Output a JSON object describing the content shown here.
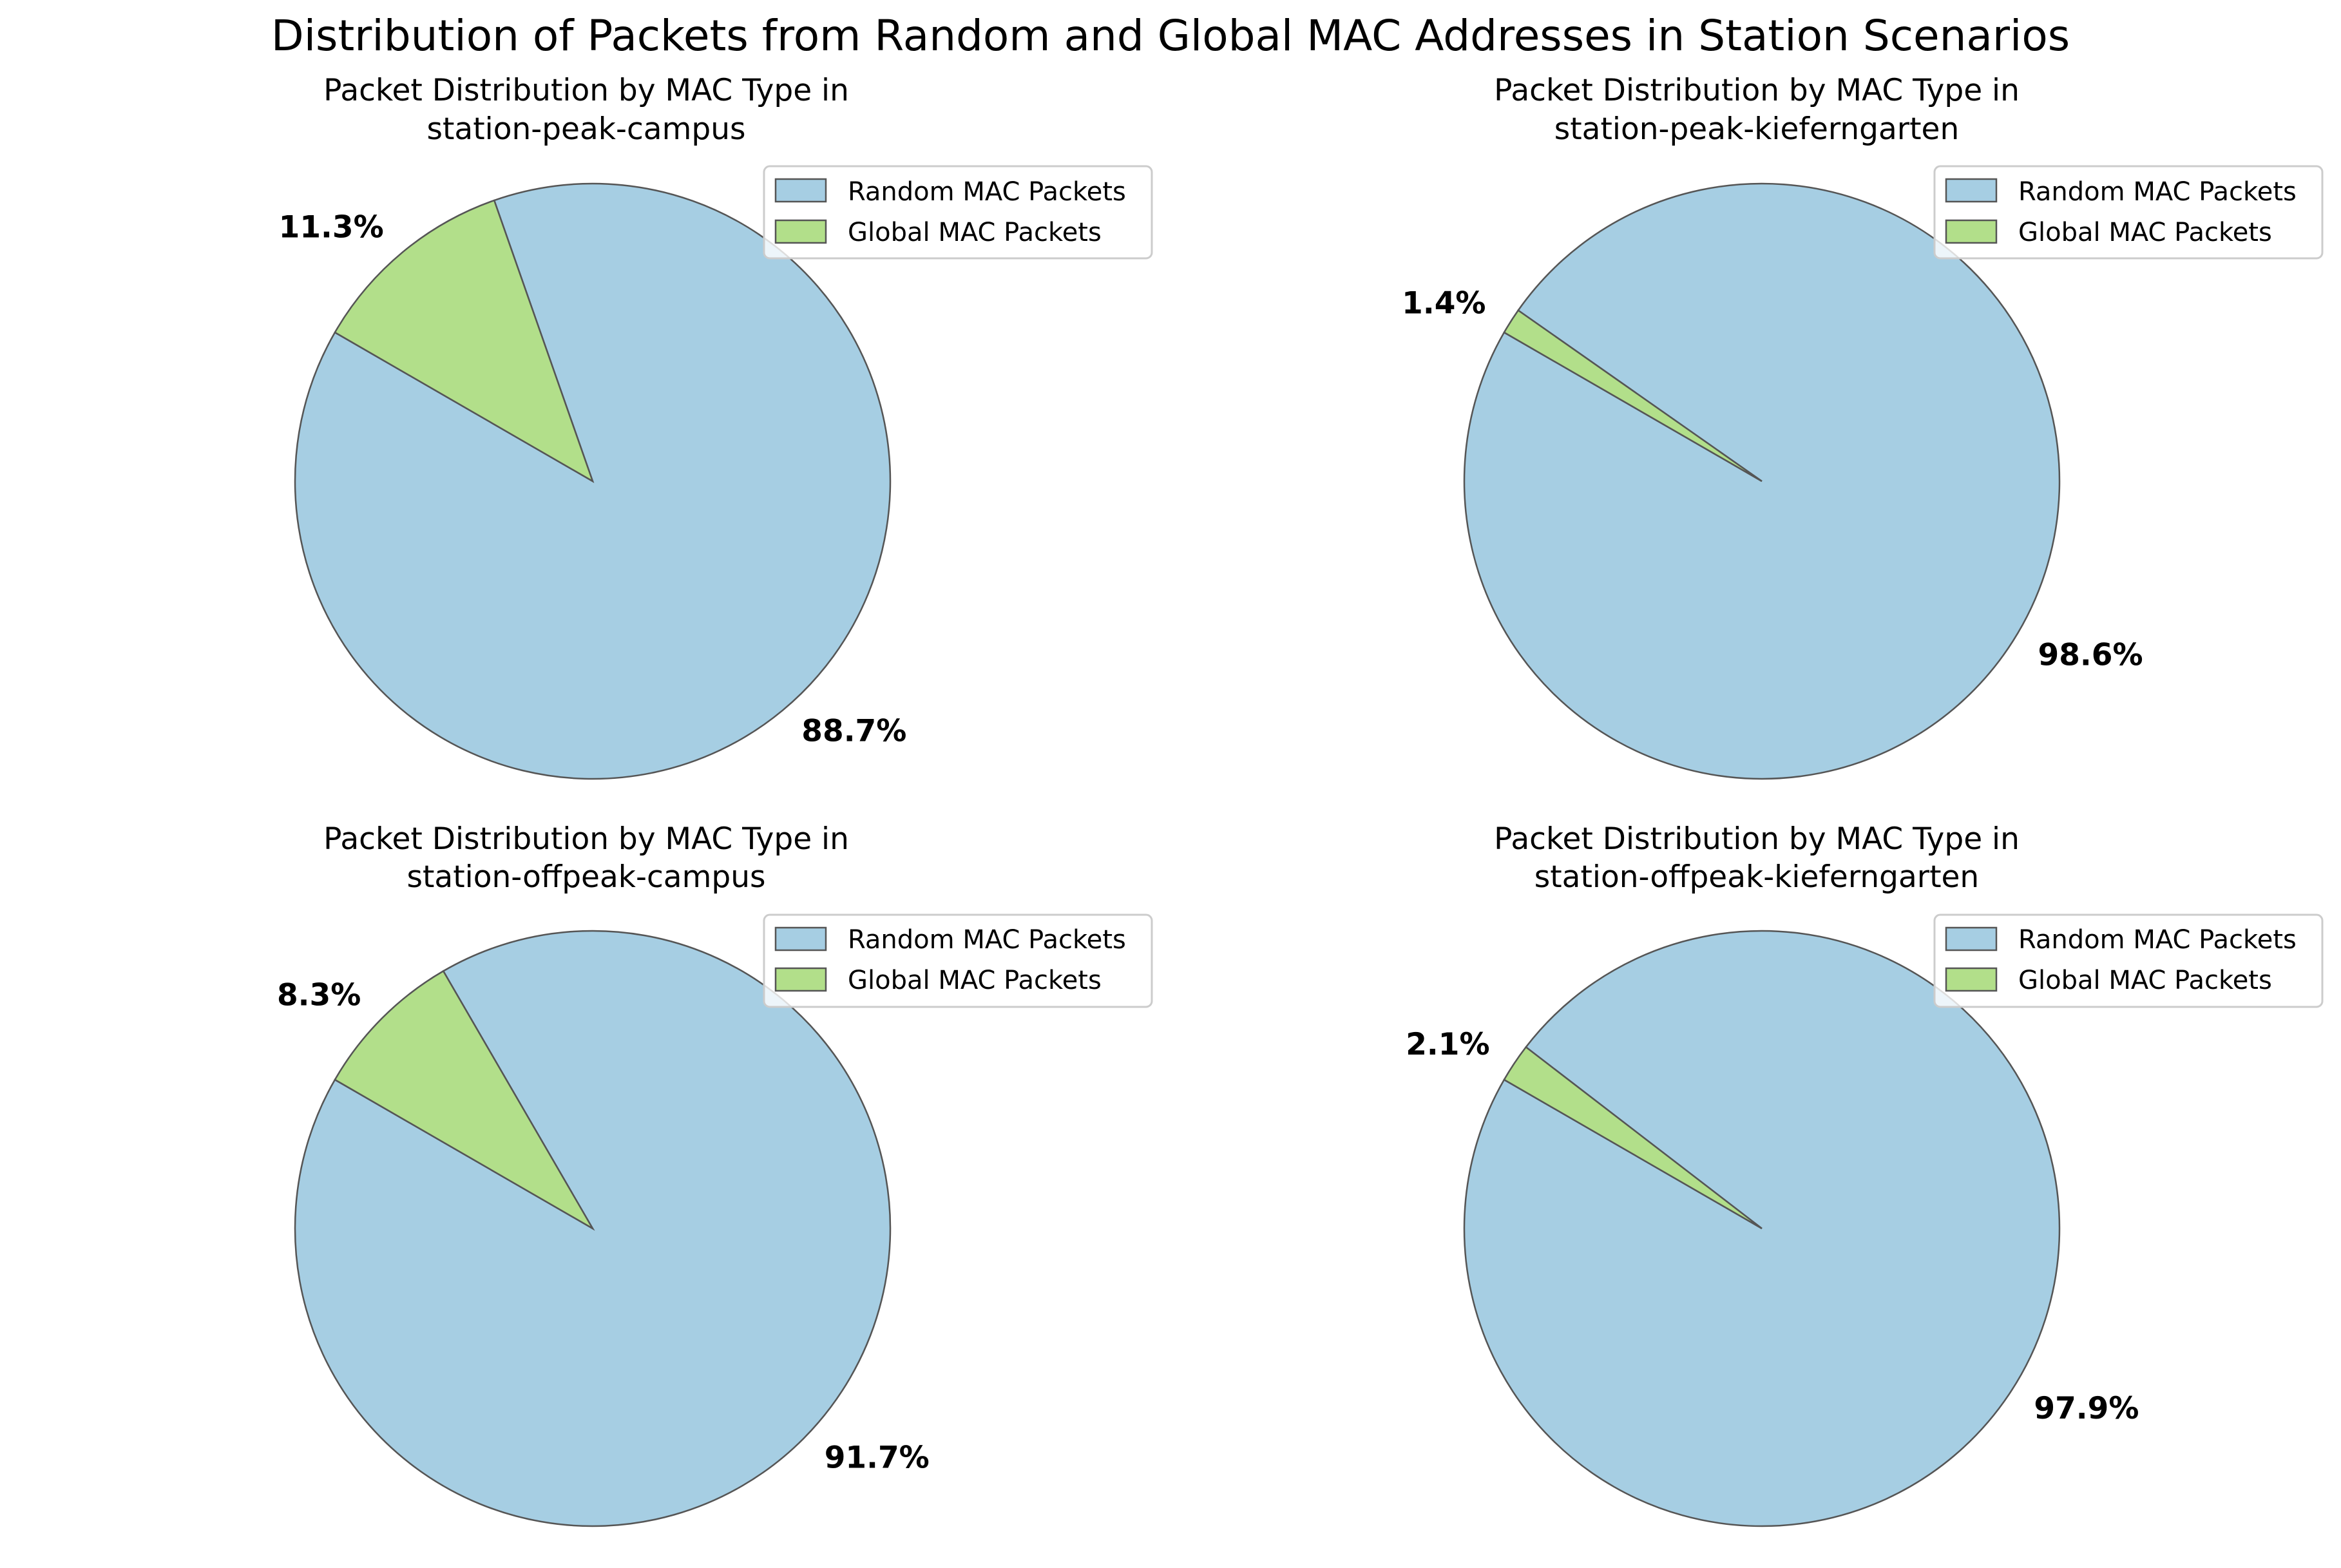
{
  "figure_title": "Distribution of Packets from Random and Global MAC Addresses in Station Scenarios",
  "colors": {
    "random": "#a6cee3",
    "global": "#b2df8a",
    "edge": "#555555"
  },
  "chart_data": [
    {
      "type": "pie",
      "title_line1": "Packet Distribution by MAC Type in",
      "title_line2": "station-peak-campus",
      "labels": [
        "Random MAC Packets",
        "Global MAC Packets"
      ],
      "values": [
        88.7,
        11.3
      ],
      "value_labels": [
        "88.7%",
        "11.3%"
      ],
      "legend_position": "upper right"
    },
    {
      "type": "pie",
      "title_line1": "Packet Distribution by MAC Type in",
      "title_line2": "station-peak-kieferngarten",
      "labels": [
        "Random MAC Packets",
        "Global MAC Packets"
      ],
      "values": [
        98.6,
        1.4
      ],
      "value_labels": [
        "98.6%",
        "1.4%"
      ],
      "legend_position": "upper right"
    },
    {
      "type": "pie",
      "title_line1": "Packet Distribution by MAC Type in",
      "title_line2": "station-offpeak-campus",
      "labels": [
        "Random MAC Packets",
        "Global MAC Packets"
      ],
      "values": [
        91.7,
        8.3
      ],
      "value_labels": [
        "91.7%",
        "8.3%"
      ],
      "legend_position": "upper right"
    },
    {
      "type": "pie",
      "title_line1": "Packet Distribution by MAC Type in",
      "title_line2": "station-offpeak-kieferngarten",
      "labels": [
        "Random MAC Packets",
        "Global MAC Packets"
      ],
      "values": [
        97.9,
        2.1
      ],
      "value_labels": [
        "97.9%",
        "2.1%"
      ],
      "legend_position": "upper right"
    }
  ]
}
